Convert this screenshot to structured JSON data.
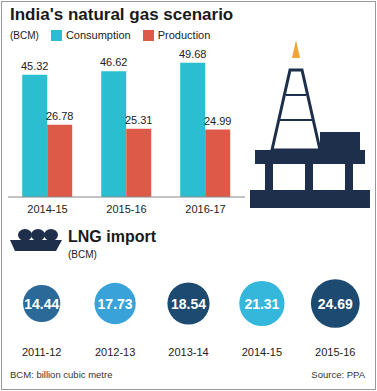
{
  "chart_data": [
    {
      "type": "bar",
      "title": "India's natural gas scenario",
      "subtitle": "(BCM)",
      "categories": [
        "2014-15",
        "2015-16",
        "2016-17"
      ],
      "series": [
        {
          "name": "Consumption",
          "color": "#2bbdd0",
          "values": [
            45.32,
            46.62,
            49.68
          ]
        },
        {
          "name": "Production",
          "color": "#dd5a49",
          "values": [
            26.78,
            25.31,
            24.99
          ]
        }
      ],
      "ylim": [
        0,
        50
      ],
      "yticks": [
        0,
        50
      ],
      "tick_labels": "x",
      "data_labels": true,
      "legend": "top-left",
      "grid": false
    },
    {
      "type": "bubble",
      "title": "LNG import",
      "subtitle": "(BCM)",
      "categories": [
        "2011-12",
        "2012-13",
        "2013-14",
        "2014-15",
        "2015-16"
      ],
      "values": [
        14.44,
        17.73,
        18.54,
        21.31,
        24.69
      ],
      "colors": [
        "#2b6a98",
        "#39a3d9",
        "#1d4a70",
        "#35b6db",
        "#1d4a70"
      ],
      "data_labels": true,
      "annotations": [
        "BCM: billion cubic metre",
        "Source: PPA"
      ]
    }
  ]
}
